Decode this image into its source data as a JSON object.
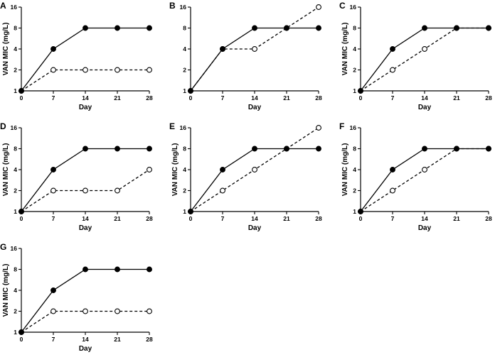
{
  "chart_data": [
    {
      "type": "line",
      "panel": "A",
      "x": [
        0,
        7,
        14,
        21,
        28
      ],
      "xlabel": "Day",
      "ylabel": "VAN  MIC (mg/L)",
      "xticks": [
        "0",
        "7",
        "14",
        "21",
        "28"
      ],
      "yticks": [
        "1",
        "2",
        "4",
        "8",
        "16"
      ],
      "yscale": "log2",
      "ylim": [
        1,
        16
      ],
      "xlim": [
        0,
        28
      ],
      "series": [
        {
          "style": "solid-filled",
          "values": [
            1,
            4,
            8,
            8,
            8
          ]
        },
        {
          "style": "dashed-open",
          "values": [
            1,
            2,
            2,
            2,
            2
          ]
        }
      ]
    },
    {
      "type": "line",
      "panel": "B",
      "x": [
        0,
        7,
        14,
        21,
        28
      ],
      "xlabel": "Day",
      "ylabel": "",
      "xticks": [
        "0",
        "7",
        "14",
        "21",
        "28"
      ],
      "yticks": [
        "1",
        "2",
        "4",
        "8",
        "16"
      ],
      "yscale": "log2",
      "ylim": [
        1,
        16
      ],
      "xlim": [
        0,
        28
      ],
      "series": [
        {
          "style": "solid-filled",
          "values": [
            1,
            4,
            8,
            8,
            8
          ]
        },
        {
          "style": "dashed-open",
          "values": [
            1,
            4,
            4,
            8,
            16
          ]
        }
      ]
    },
    {
      "type": "line",
      "panel": "C",
      "x": [
        0,
        7,
        14,
        21,
        28
      ],
      "xlabel": "Day",
      "ylabel": "VAN  MIC (mg/L)",
      "xticks": [
        "0",
        "7",
        "14",
        "21",
        "28"
      ],
      "yticks": [
        "1",
        "2",
        "4",
        "8",
        "16"
      ],
      "yscale": "log2",
      "ylim": [
        1,
        16
      ],
      "xlim": [
        0,
        28
      ],
      "series": [
        {
          "style": "solid-filled",
          "values": [
            1,
            4,
            8,
            8,
            8
          ]
        },
        {
          "style": "dashed-open",
          "values": [
            1,
            2,
            4,
            8,
            8
          ]
        }
      ]
    },
    {
      "type": "line",
      "panel": "D",
      "x": [
        0,
        7,
        14,
        21,
        28
      ],
      "xlabel": "Day",
      "ylabel": "VAN  MIC (mg/L)",
      "xticks": [
        "0",
        "7",
        "14",
        "21",
        "28"
      ],
      "yticks": [
        "1",
        "2",
        "4",
        "8",
        "16"
      ],
      "yscale": "log2",
      "ylim": [
        1,
        16
      ],
      "xlim": [
        0,
        28
      ],
      "series": [
        {
          "style": "solid-filled",
          "values": [
            1,
            4,
            8,
            8,
            8
          ]
        },
        {
          "style": "dashed-open",
          "values": [
            1,
            2,
            2,
            2,
            4
          ]
        }
      ]
    },
    {
      "type": "line",
      "panel": "E",
      "x": [
        0,
        7,
        14,
        21,
        28
      ],
      "xlabel": "Day",
      "ylabel": "VAN  MIC (mg/L)",
      "xticks": [
        "0",
        "7",
        "14",
        "21",
        "28"
      ],
      "yticks": [
        "1",
        "2",
        "4",
        "8",
        "16"
      ],
      "yscale": "log2",
      "ylim": [
        1,
        16
      ],
      "xlim": [
        0,
        28
      ],
      "series": [
        {
          "style": "solid-filled",
          "values": [
            1,
            4,
            8,
            8,
            8
          ]
        },
        {
          "style": "dashed-open",
          "values": [
            1,
            2,
            4,
            8,
            16
          ]
        }
      ]
    },
    {
      "type": "line",
      "panel": "F",
      "x": [
        0,
        7,
        14,
        21,
        28
      ],
      "xlabel": "Day",
      "ylabel": "VAN  MIC (mg/L)",
      "xticks": [
        "0",
        "7",
        "14",
        "21",
        "28"
      ],
      "yticks": [
        "1",
        "2",
        "4",
        "8",
        "16"
      ],
      "yscale": "log2",
      "ylim": [
        1,
        16
      ],
      "xlim": [
        0,
        28
      ],
      "series": [
        {
          "style": "solid-filled",
          "values": [
            1,
            4,
            8,
            8,
            8
          ]
        },
        {
          "style": "dashed-open",
          "values": [
            1,
            2,
            4,
            8,
            8
          ]
        }
      ]
    },
    {
      "type": "line",
      "panel": "G",
      "x": [
        0,
        7,
        14,
        21,
        28
      ],
      "xlabel": "Day",
      "ylabel": "VAN  MIC (mg/L)",
      "xticks": [
        "0",
        "7",
        "14",
        "21",
        "28"
      ],
      "yticks": [
        "1",
        "2",
        "4",
        "8",
        "16"
      ],
      "yscale": "log2",
      "ylim": [
        1,
        16
      ],
      "xlim": [
        0,
        28
      ],
      "series": [
        {
          "style": "solid-filled",
          "values": [
            1,
            4,
            8,
            8,
            8
          ]
        },
        {
          "style": "dashed-open",
          "values": [
            1,
            2,
            2,
            2,
            2
          ]
        }
      ]
    }
  ]
}
